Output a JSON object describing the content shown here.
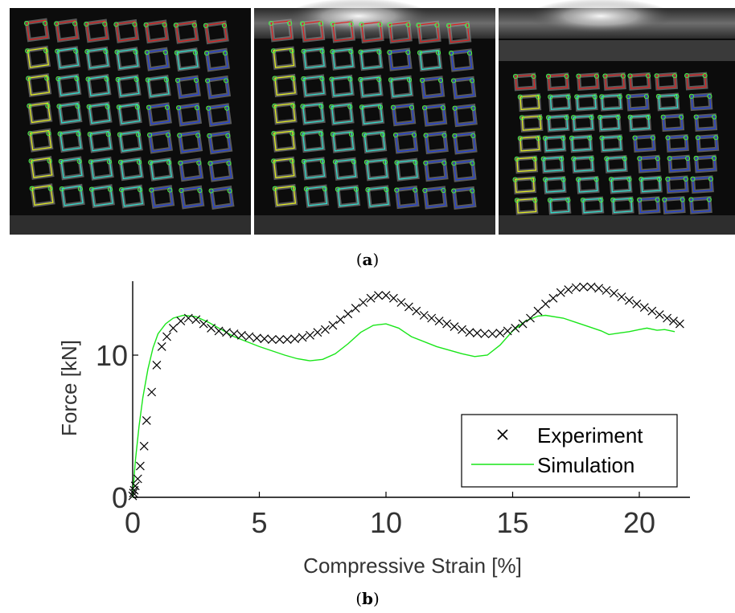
{
  "panels": {
    "a_caption": "(a)",
    "b_caption": "(b)",
    "a_label_letter": "a",
    "b_label_letter": "b"
  },
  "images": [
    {
      "name": "compression-frame-1",
      "icon": "lattice-photo-undeformed"
    },
    {
      "name": "compression-frame-2",
      "icon": "lattice-photo-mid"
    },
    {
      "name": "compression-frame-3",
      "icon": "lattice-photo-deformed"
    }
  ],
  "colors": {
    "experiment": "#000000",
    "simulation": "#19e619",
    "dic_red": "#e02020",
    "dic_yellow": "#e6f020",
    "dic_cyan": "#30e0d0",
    "dic_blue": "#2040e0",
    "dic_green": "#40ff40"
  },
  "chart_data": {
    "type": "scatter",
    "title": "",
    "xlabel": "Compressive Strain [%]",
    "ylabel": "Force [kN]",
    "xlim": [
      0,
      22
    ],
    "ylim": [
      0,
      15.2
    ],
    "xticks": [
      0,
      5,
      10,
      15,
      20
    ],
    "yticks": [
      0,
      10
    ],
    "xtick_labels": [
      "0",
      "5",
      "10",
      "15",
      "20"
    ],
    "ytick_labels": [
      "0",
      "10"
    ],
    "grid": false,
    "legend_position": "bottom-right",
    "series": [
      {
        "name": "Experiment",
        "marker": "x",
        "points": [
          [
            0.0,
            0.1
          ],
          [
            0.03,
            0.3
          ],
          [
            0.06,
            0.5
          ],
          [
            0.1,
            0.8
          ],
          [
            0.2,
            1.3
          ],
          [
            0.3,
            2.2
          ],
          [
            0.45,
            3.6
          ],
          [
            0.55,
            5.4
          ],
          [
            0.75,
            7.4
          ],
          [
            0.95,
            9.3
          ],
          [
            1.15,
            10.6
          ],
          [
            1.35,
            11.3
          ],
          [
            1.6,
            11.9
          ],
          [
            1.9,
            12.4
          ],
          [
            2.2,
            12.6
          ],
          [
            2.5,
            12.5
          ],
          [
            2.8,
            12.2
          ],
          [
            3.1,
            11.9
          ],
          [
            3.4,
            11.7
          ],
          [
            3.7,
            11.6
          ],
          [
            4.0,
            11.5
          ],
          [
            4.3,
            11.4
          ],
          [
            4.6,
            11.3
          ],
          [
            4.9,
            11.2
          ],
          [
            5.2,
            11.15
          ],
          [
            5.5,
            11.1
          ],
          [
            5.8,
            11.1
          ],
          [
            6.1,
            11.1
          ],
          [
            6.4,
            11.15
          ],
          [
            6.7,
            11.25
          ],
          [
            7.0,
            11.4
          ],
          [
            7.3,
            11.6
          ],
          [
            7.6,
            11.8
          ],
          [
            7.9,
            12.1
          ],
          [
            8.2,
            12.5
          ],
          [
            8.5,
            12.9
          ],
          [
            8.8,
            13.3
          ],
          [
            9.1,
            13.7
          ],
          [
            9.4,
            14.0
          ],
          [
            9.7,
            14.2
          ],
          [
            10.0,
            14.2
          ],
          [
            10.3,
            14.0
          ],
          [
            10.6,
            13.7
          ],
          [
            10.9,
            13.4
          ],
          [
            11.2,
            13.1
          ],
          [
            11.5,
            12.8
          ],
          [
            11.8,
            12.6
          ],
          [
            12.1,
            12.4
          ],
          [
            12.4,
            12.2
          ],
          [
            12.7,
            12.0
          ],
          [
            13.0,
            11.8
          ],
          [
            13.3,
            11.6
          ],
          [
            13.6,
            11.55
          ],
          [
            13.9,
            11.5
          ],
          [
            14.2,
            11.5
          ],
          [
            14.5,
            11.55
          ],
          [
            14.8,
            11.7
          ],
          [
            15.1,
            11.9
          ],
          [
            15.4,
            12.2
          ],
          [
            15.7,
            12.6
          ],
          [
            16.0,
            13.1
          ],
          [
            16.3,
            13.6
          ],
          [
            16.6,
            14.0
          ],
          [
            16.9,
            14.4
          ],
          [
            17.2,
            14.6
          ],
          [
            17.5,
            14.75
          ],
          [
            17.8,
            14.8
          ],
          [
            18.1,
            14.8
          ],
          [
            18.4,
            14.7
          ],
          [
            18.7,
            14.55
          ],
          [
            19.0,
            14.35
          ],
          [
            19.3,
            14.1
          ],
          [
            19.6,
            13.85
          ],
          [
            19.9,
            13.6
          ],
          [
            20.2,
            13.35
          ],
          [
            20.5,
            13.1
          ],
          [
            20.8,
            12.85
          ],
          [
            21.1,
            12.6
          ],
          [
            21.35,
            12.4
          ],
          [
            21.6,
            12.2
          ]
        ]
      },
      {
        "name": "Simulation",
        "marker": "line",
        "points": [
          [
            0.0,
            0.0
          ],
          [
            0.1,
            2.5
          ],
          [
            0.25,
            5.0
          ],
          [
            0.4,
            7.0
          ],
          [
            0.6,
            9.0
          ],
          [
            0.8,
            10.5
          ],
          [
            1.0,
            11.5
          ],
          [
            1.3,
            12.2
          ],
          [
            1.6,
            12.6
          ],
          [
            2.0,
            12.8
          ],
          [
            2.5,
            12.7
          ],
          [
            3.0,
            12.3
          ],
          [
            3.5,
            11.8
          ],
          [
            4.0,
            11.3
          ],
          [
            5.0,
            10.6
          ],
          [
            6.0,
            10.0
          ],
          [
            6.5,
            9.75
          ],
          [
            7.0,
            9.6
          ],
          [
            7.5,
            9.7
          ],
          [
            8.0,
            10.1
          ],
          [
            8.5,
            10.8
          ],
          [
            9.0,
            11.6
          ],
          [
            9.5,
            12.1
          ],
          [
            10.0,
            12.2
          ],
          [
            10.5,
            11.9
          ],
          [
            11.0,
            11.3
          ],
          [
            12.0,
            10.6
          ],
          [
            13.0,
            10.1
          ],
          [
            13.5,
            9.9
          ],
          [
            14.0,
            10.0
          ],
          [
            14.5,
            10.7
          ],
          [
            15.0,
            11.7
          ],
          [
            15.5,
            12.4
          ],
          [
            16.0,
            12.75
          ],
          [
            16.3,
            12.8
          ],
          [
            17.0,
            12.6
          ],
          [
            17.5,
            12.3
          ],
          [
            18.0,
            12.0
          ],
          [
            18.5,
            11.7
          ],
          [
            18.8,
            11.45
          ],
          [
            19.2,
            11.55
          ],
          [
            19.6,
            11.65
          ],
          [
            20.0,
            11.8
          ],
          [
            20.3,
            11.9
          ],
          [
            20.7,
            11.75
          ],
          [
            21.0,
            11.8
          ],
          [
            21.4,
            11.65
          ]
        ]
      }
    ]
  }
}
